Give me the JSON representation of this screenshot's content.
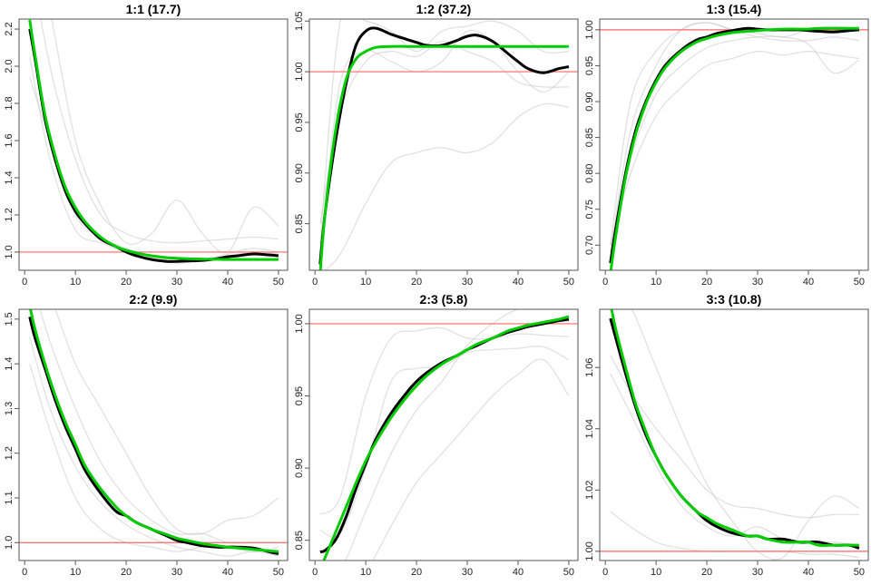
{
  "chart_data": {
    "type": "line",
    "x_grid": [
      1,
      2,
      4,
      6,
      8,
      10,
      12,
      15,
      18,
      20,
      22,
      25,
      28,
      30,
      32,
      35,
      38,
      40,
      42,
      45,
      48,
      50
    ],
    "grey_x": [
      1,
      5,
      10,
      15,
      20,
      25,
      30,
      35,
      40,
      45,
      50
    ],
    "colors": {
      "mean": "#000000",
      "fit": "#00cc00",
      "reference": "#ff6666",
      "replicates": "#c8c8c8"
    },
    "panels": [
      {
        "title": "1:1 (17.7)",
        "xlim": [
          -1.1,
          51.8
        ],
        "ylim": [
          0.902,
          2.254
        ],
        "xticks": [
          "0",
          "10",
          "20",
          "30",
          "40",
          "50"
        ],
        "yticks": [
          "1.0",
          "1.2",
          "1.4",
          "1.6",
          "1.8",
          "2.0",
          "2.2"
        ],
        "reference": 1.0,
        "mean": [
          2.2,
          2.05,
          1.72,
          1.5,
          1.33,
          1.22,
          1.15,
          1.07,
          1.03,
          1.0,
          0.98,
          0.96,
          0.95,
          0.95,
          0.952,
          0.955,
          0.965,
          0.975,
          0.98,
          0.99,
          0.985,
          0.98
        ],
        "fit": [
          2.25,
          2.07,
          1.74,
          1.52,
          1.35,
          1.24,
          1.16,
          1.08,
          1.03,
          1.01,
          0.995,
          0.98,
          0.97,
          0.967,
          0.964,
          0.962,
          0.961,
          0.96,
          0.96,
          0.96,
          0.96,
          0.96
        ],
        "replicates": [
          [
            1.94,
            1.6,
            1.2,
            1.08,
            1.02,
            0.98,
            0.95,
            0.96,
            0.98,
            1.0,
            0.99
          ],
          [
            2.05,
            1.5,
            1.12,
            1.05,
            1.0,
            0.97,
            0.94,
            0.96,
            0.99,
            1.02,
            1.0
          ],
          [
            2.6,
            2.0,
            1.5,
            1.2,
            1.1,
            1.06,
            1.05,
            1.06,
            1.07,
            1.08,
            1.07
          ],
          [
            2.8,
            2.3,
            1.6,
            1.25,
            1.05,
            1.1,
            1.28,
            1.1,
            1.0,
            1.24,
            1.14
          ]
        ]
      },
      {
        "title": "1:2 (37.2)",
        "xlim": [
          -1.1,
          51.8
        ],
        "ylim": [
          0.804,
          1.052
        ],
        "xticks": [
          "0",
          "10",
          "20",
          "30",
          "40",
          "50"
        ],
        "yticks": [
          "0.85",
          "0.90",
          "0.95",
          "1.00",
          "1.05"
        ],
        "reference": 1.0,
        "mean": [
          0.81,
          0.86,
          0.93,
          0.985,
          1.025,
          1.04,
          1.043,
          1.037,
          1.032,
          1.029,
          1.026,
          1.026,
          1.031,
          1.035,
          1.036,
          1.03,
          1.018,
          1.01,
          1.003,
          0.999,
          1.003,
          1.005
        ],
        "fit": [
          0.8,
          0.86,
          0.94,
          0.99,
          1.012,
          1.02,
          1.024,
          1.025,
          1.025,
          1.025,
          1.025,
          1.025,
          1.025,
          1.025,
          1.025,
          1.025,
          1.025,
          1.025,
          1.025,
          1.025,
          1.025,
          1.025
        ],
        "replicates": [
          [
            0.85,
            0.96,
            1.01,
            1.02,
            1.015,
            1.03,
            1.02,
            1.01,
            0.99,
            0.985,
            0.985
          ],
          [
            0.8,
            0.82,
            0.87,
            0.91,
            0.92,
            0.925,
            0.92,
            0.93,
            0.955,
            0.968,
            0.965
          ],
          [
            0.82,
            0.99,
            1.02,
            1.01,
            1.0,
            1.01,
            1.04,
            1.03,
            1.0,
            0.98,
            1.0
          ],
          [
            0.83,
            1.05,
            1.05,
            1.04,
            1.02,
            1.04,
            1.045,
            1.05,
            1.04,
            1.02,
            1.02
          ]
        ]
      },
      {
        "title": "1:3 (15.4)",
        "xlim": [
          -1.1,
          51.8
        ],
        "ylim": [
          0.665,
          1.015
        ],
        "xticks": [
          "0",
          "10",
          "20",
          "30",
          "40",
          "50"
        ],
        "yticks": [
          "0.70",
          "0.75",
          "0.80",
          "0.85",
          "0.90",
          "0.95",
          "1.00"
        ],
        "reference": 1.0,
        "mean": [
          0.675,
          0.72,
          0.8,
          0.86,
          0.9,
          0.93,
          0.952,
          0.972,
          0.986,
          0.99,
          0.995,
          0.999,
          1.002,
          1.001,
          1.0,
          1.0,
          1.0,
          0.999,
          0.998,
          0.997,
          0.999,
          1.0
        ],
        "fit": [
          0.66,
          0.71,
          0.795,
          0.855,
          0.897,
          0.927,
          0.949,
          0.97,
          0.983,
          0.988,
          0.992,
          0.996,
          0.998,
          0.999,
          1.0,
          1.001,
          1.001,
          1.001,
          1.002,
          1.002,
          1.002,
          1.002
        ],
        "replicates": [
          [
            0.7,
            0.8,
            0.88,
            0.92,
            0.95,
            0.96,
            0.97,
            0.965,
            0.97,
            0.965,
            0.96
          ],
          [
            0.68,
            0.82,
            0.91,
            0.95,
            0.975,
            0.985,
            0.99,
            0.99,
            0.98,
            0.94,
            0.958
          ],
          [
            0.69,
            0.86,
            0.95,
            1.0,
            1.01,
            1.0,
            0.99,
            0.985,
            0.985,
            0.99,
            0.985
          ],
          [
            0.7,
            0.9,
            0.97,
            1.0,
            1.01,
            1.0,
            0.995,
            0.99,
            1.0,
            1.005,
            1.0
          ]
        ]
      },
      {
        "title": "2:2 (9.9)",
        "xlim": [
          -1.1,
          51.8
        ],
        "ylim": [
          0.96,
          1.522
        ],
        "xticks": [
          "0",
          "10",
          "20",
          "30",
          "40",
          "50"
        ],
        "yticks": [
          "1.0",
          "1.1",
          "1.2",
          "1.3",
          "1.4",
          "1.5"
        ],
        "reference": 1.0,
        "mean": [
          1.505,
          1.46,
          1.39,
          1.32,
          1.26,
          1.21,
          1.16,
          1.11,
          1.07,
          1.06,
          1.045,
          1.03,
          1.015,
          1.005,
          1.0,
          0.993,
          0.99,
          0.99,
          0.99,
          0.988,
          0.98,
          0.975
        ],
        "fit": [
          1.53,
          1.48,
          1.4,
          1.33,
          1.27,
          1.22,
          1.17,
          1.12,
          1.08,
          1.06,
          1.045,
          1.03,
          1.018,
          1.01,
          1.005,
          0.998,
          0.993,
          0.99,
          0.988,
          0.985,
          0.982,
          0.98
        ],
        "replicates": [
          [
            1.4,
            1.25,
            1.1,
            1.03,
            1.0,
            0.99,
            0.98,
            0.99,
            0.99,
            0.98,
            0.99
          ],
          [
            1.46,
            1.3,
            1.17,
            1.09,
            1.04,
            1.01,
            0.99,
            0.98,
            0.97,
            0.98,
            0.97
          ],
          [
            1.6,
            1.45,
            1.3,
            1.18,
            1.1,
            1.05,
            1.02,
            1.02,
            1.0,
            1.0,
            1.0
          ],
          [
            1.6,
            1.55,
            1.4,
            1.3,
            1.2,
            1.1,
            1.03,
            1.02,
            1.05,
            1.06,
            1.1
          ]
        ]
      },
      {
        "title": "2:3 (5.8)",
        "xlim": [
          -1.1,
          51.8
        ],
        "ylim": [
          0.836,
          1.01
        ],
        "xticks": [
          "0",
          "10",
          "20",
          "30",
          "40",
          "50"
        ],
        "yticks": [
          "0.85",
          "0.90",
          "0.95",
          "1.00"
        ],
        "reference": 1.0,
        "mean": [
          0.842,
          0.843,
          0.85,
          0.865,
          0.885,
          0.903,
          0.92,
          0.938,
          0.952,
          0.96,
          0.966,
          0.973,
          0.978,
          0.982,
          0.985,
          0.99,
          0.994,
          0.996,
          0.998,
          1.0,
          1.002,
          1.003
        ],
        "fit": [
          0.83,
          0.838,
          0.855,
          0.872,
          0.889,
          0.905,
          0.918,
          0.935,
          0.949,
          0.957,
          0.964,
          0.972,
          0.978,
          0.982,
          0.986,
          0.99,
          0.995,
          0.997,
          0.999,
          1.001,
          1.003,
          1.005
        ],
        "replicates": [
          [
            0.868,
            0.88,
            0.95,
            0.99,
            0.995,
            0.997,
            0.99,
            0.99,
            0.993,
            0.992,
            0.991
          ],
          [
            0.857,
            0.855,
            0.9,
            0.96,
            0.969,
            0.97,
            0.98,
            0.982,
            0.983,
            0.984,
            0.975
          ],
          [
            0.83,
            0.83,
            0.83,
            0.86,
            0.89,
            0.91,
            0.93,
            0.95,
            0.965,
            0.975,
            0.95
          ],
          [
            0.83,
            0.83,
            0.87,
            0.91,
            0.94,
            0.96,
            0.985,
            1.0,
            1.01,
            1.01,
            1.01
          ]
        ]
      },
      {
        "title": "3:3 (10.8)",
        "xlim": [
          -1.1,
          51.8
        ],
        "ylim": [
          0.997,
          1.079
        ],
        "xticks": [
          "0",
          "10",
          "20",
          "30",
          "40",
          "50"
        ],
        "yticks": [
          "1.00",
          "1.02",
          "1.04",
          "1.06"
        ],
        "reference": 1.0,
        "mean": [
          1.076,
          1.07,
          1.058,
          1.047,
          1.038,
          1.031,
          1.025,
          1.018,
          1.013,
          1.01,
          1.008,
          1.006,
          1.005,
          1.005,
          1.004,
          1.004,
          1.003,
          1.003,
          1.003,
          1.002,
          1.002,
          1.001
        ],
        "fit": [
          1.081,
          1.073,
          1.06,
          1.048,
          1.039,
          1.031,
          1.025,
          1.018,
          1.013,
          1.011,
          1.009,
          1.007,
          1.005,
          1.005,
          1.004,
          1.003,
          1.003,
          1.003,
          1.002,
          1.002,
          1.002,
          1.002
        ],
        "replicates": [
          [
            1.013,
            1.008,
            1.003,
            1.001,
            1.0,
            1.0,
            1.0,
            1.0,
            0.999,
            0.999,
            0.998
          ],
          [
            1.058,
            1.045,
            1.028,
            1.015,
            1.008,
            1.005,
            1.008,
            1.004,
            1.003,
            1.003,
            1.002
          ],
          [
            1.064,
            1.052,
            1.04,
            1.03,
            1.02,
            1.015,
            1.014,
            1.012,
            1.011,
            1.012,
            1.012
          ],
          [
            1.09,
            1.08,
            1.06,
            1.04,
            1.022,
            1.01,
            1.0,
            0.998,
            1.01,
            1.018,
            1.014
          ]
        ]
      }
    ]
  }
}
